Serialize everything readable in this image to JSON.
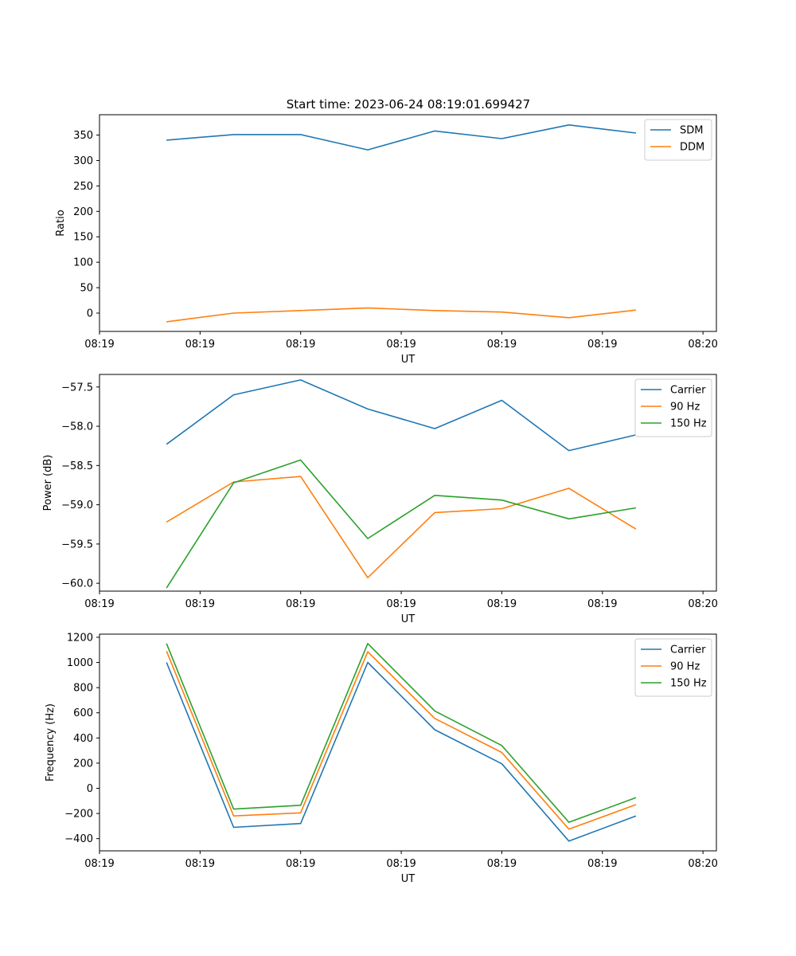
{
  "figure": {
    "suptitle": "Start time: 2023-06-24 08:19:01.699427"
  },
  "colors": {
    "blue": "#1f77b4",
    "orange": "#ff7f0e",
    "green": "#2ca02c"
  },
  "chart_data": [
    {
      "type": "line",
      "xlabel": "UT",
      "ylabel": "Ratio",
      "x": [
        1,
        2,
        3,
        4,
        5,
        6,
        7,
        8
      ],
      "xlim": [
        0,
        9.2
      ],
      "xticks": [
        0,
        1.5,
        3,
        4.5,
        6,
        7.5,
        9
      ],
      "xtick_labels": [
        "08:19",
        "08:19",
        "08:19",
        "08:19",
        "08:19",
        "08:19",
        "08:20"
      ],
      "ylim": [
        -36,
        390
      ],
      "yticks": [
        0,
        50,
        100,
        150,
        200,
        250,
        300,
        350
      ],
      "ytick_labels": [
        "0",
        "50",
        "100",
        "150",
        "200",
        "250",
        "300",
        "350"
      ],
      "legend": "top-right",
      "series": [
        {
          "name": "SDM",
          "color": "#1f77b4",
          "values": [
            340,
            351,
            351,
            321,
            358,
            343,
            370,
            354
          ]
        },
        {
          "name": "DDM",
          "color": "#ff7f0e",
          "values": [
            -17,
            0,
            5,
            10,
            5,
            2,
            -9,
            6
          ]
        }
      ]
    },
    {
      "type": "line",
      "xlabel": "UT",
      "ylabel": "Power (dB)",
      "x": [
        1,
        2,
        3,
        4,
        5,
        6,
        7,
        8
      ],
      "xlim": [
        0,
        9.2
      ],
      "xticks": [
        0,
        1.5,
        3,
        4.5,
        6,
        7.5,
        9
      ],
      "xtick_labels": [
        "08:19",
        "08:19",
        "08:19",
        "08:19",
        "08:19",
        "08:19",
        "08:20"
      ],
      "ylim": [
        -60.1,
        -57.34
      ],
      "yticks": [
        -60.0,
        -59.5,
        -59.0,
        -58.5,
        -58.0,
        -57.5
      ],
      "ytick_labels": [
        "−60.0",
        "−59.5",
        "−59.0",
        "−58.5",
        "−58.0",
        "−57.5"
      ],
      "legend": "top-right",
      "series": [
        {
          "name": "Carrier",
          "color": "#1f77b4",
          "values": [
            -58.23,
            -57.6,
            -57.41,
            -57.78,
            -58.03,
            -57.67,
            -58.31,
            -58.11
          ]
        },
        {
          "name": "90 Hz",
          "color": "#ff7f0e",
          "values": [
            -59.22,
            -58.71,
            -58.64,
            -59.93,
            -59.1,
            -59.05,
            -58.79,
            -59.31
          ]
        },
        {
          "name": "150 Hz",
          "color": "#2ca02c",
          "values": [
            -60.06,
            -58.72,
            -58.43,
            -59.43,
            -58.88,
            -58.94,
            -59.18,
            -59.04
          ]
        }
      ]
    },
    {
      "type": "line",
      "xlabel": "UT",
      "ylabel": "Frequency (Hz)",
      "x": [
        1,
        2,
        3,
        4,
        5,
        6,
        7,
        8
      ],
      "xlim": [
        0,
        9.2
      ],
      "xticks": [
        0,
        1.5,
        3,
        4.5,
        6,
        7.5,
        9
      ],
      "xtick_labels": [
        "08:19",
        "08:19",
        "08:19",
        "08:19",
        "08:19",
        "08:19",
        "08:20"
      ],
      "ylim": [
        -497,
        1225
      ],
      "yticks": [
        -400,
        -200,
        0,
        200,
        400,
        600,
        800,
        1000,
        1200
      ],
      "ytick_labels": [
        "−400",
        "−200",
        "0",
        "200",
        "400",
        "600",
        "800",
        "1000",
        "1200"
      ],
      "legend": "top-right",
      "series": [
        {
          "name": "Carrier",
          "color": "#1f77b4",
          "values": [
            1000,
            -310,
            -280,
            1000,
            465,
            195,
            -420,
            -220
          ]
        },
        {
          "name": "90 Hz",
          "color": "#ff7f0e",
          "values": [
            1090,
            -220,
            -195,
            1085,
            555,
            285,
            -325,
            -130
          ]
        },
        {
          "name": "150 Hz",
          "color": "#2ca02c",
          "values": [
            1150,
            -165,
            -135,
            1150,
            615,
            340,
            -270,
            -75
          ]
        }
      ]
    }
  ]
}
